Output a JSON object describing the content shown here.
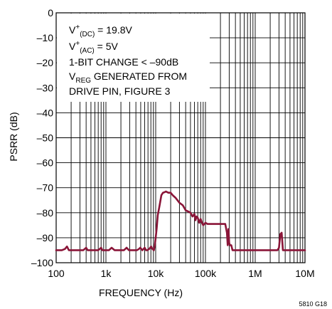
{
  "chart_data": {
    "type": "line",
    "xlabel": "FREQUENCY (Hz)",
    "ylabel": "PSRR (dB)",
    "x_scale": "log",
    "xlim": [
      100,
      10000000
    ],
    "ylim": [
      -100,
      0
    ],
    "grid": true,
    "x_tick_labels": [
      "100",
      "1k",
      "10k",
      "100k",
      "1M",
      "10M"
    ],
    "y_tick_labels": [
      "0",
      "–10",
      "–20",
      "–30",
      "–40",
      "–50",
      "–60",
      "–70",
      "–80",
      "–90",
      "–100"
    ],
    "series_color": "#8a1538",
    "annotation": {
      "line1_main": "V",
      "line1_sup": "+",
      "line1_sub": "(DC)",
      "line1_rest": " = 19.8V",
      "line2_main": "V",
      "line2_sup": "+",
      "line2_sub": "(AC)",
      "line2_rest": " = 5V",
      "line3": "1-BIT CHANGE < –90dB",
      "line4_main": "V",
      "line4_sub": "REG",
      "line4_rest": " GENERATED FROM",
      "line5": "DRIVE PIN, FIGURE 3"
    },
    "figure_id": "5810 G18",
    "series": [
      {
        "x": [
          100,
          130,
          150,
          165,
          180,
          200,
          230,
          280,
          350,
          400,
          430,
          460,
          500,
          600,
          700,
          800,
          850,
          900,
          1000,
          1150,
          1300,
          1500,
          1700,
          2000,
          2300,
          2600,
          2900,
          3300,
          3700,
          4200,
          4600,
          4900,
          5400,
          6000,
          6400,
          6800,
          7400,
          8100,
          8600,
          9200,
          9600,
          10000,
          10500,
          11000,
          12000,
          13000,
          14000,
          15000,
          16000,
          18000,
          20000,
          22000,
          25000,
          30000,
          35000,
          40000,
          45000,
          50000,
          55000,
          60000,
          63000,
          66000,
          70000,
          75000,
          80000,
          85000,
          90000,
          100000,
          110000,
          120000,
          130000,
          140000,
          150000,
          170000,
          200000,
          230000,
          250000,
          270000,
          280000,
          290000,
          300000,
          310000,
          330000,
          350000,
          380000,
          420000,
          500000,
          600000,
          800000,
          1000000,
          1200000,
          1500000,
          2000000,
          2500000,
          2800000,
          3000000,
          3200000,
          3400000,
          3600000,
          3800000,
          4200000,
          5000000,
          6000000,
          8000000,
          10000000
        ],
        "y": [
          -95,
          -95,
          -94.5,
          -93.5,
          -95,
          -95,
          -95,
          -95,
          -95,
          -94,
          -95,
          -95,
          -95,
          -95,
          -95,
          -94,
          -95,
          -95,
          -95,
          -95,
          -94,
          -95,
          -95,
          -95,
          -95,
          -94,
          -95,
          -95,
          -95,
          -95,
          -94.5,
          -94,
          -95,
          -94,
          -95,
          -95,
          -94.5,
          -93.5,
          -94.5,
          -95,
          -93,
          -90,
          -86,
          -81,
          -77,
          -73,
          -72,
          -71.8,
          -71.5,
          -72,
          -72,
          -73,
          -74,
          -76,
          -77,
          -79,
          -79.5,
          -80,
          -81.5,
          -80.5,
          -83,
          -81.5,
          -82,
          -84,
          -82.5,
          -84,
          -85,
          -84,
          -84.5,
          -84.5,
          -84.5,
          -84.5,
          -84.5,
          -84.5,
          -84.5,
          -84.5,
          -84.5,
          -88,
          -93,
          -86.5,
          -92,
          -93,
          -93,
          -95,
          -95,
          -95,
          -95,
          -95,
          -95,
          -95,
          -95,
          -95,
          -95,
          -95,
          -95,
          -94,
          -88.5,
          -88,
          -95,
          -95,
          -95,
          -95,
          -95,
          -95,
          -95
        ]
      }
    ]
  }
}
